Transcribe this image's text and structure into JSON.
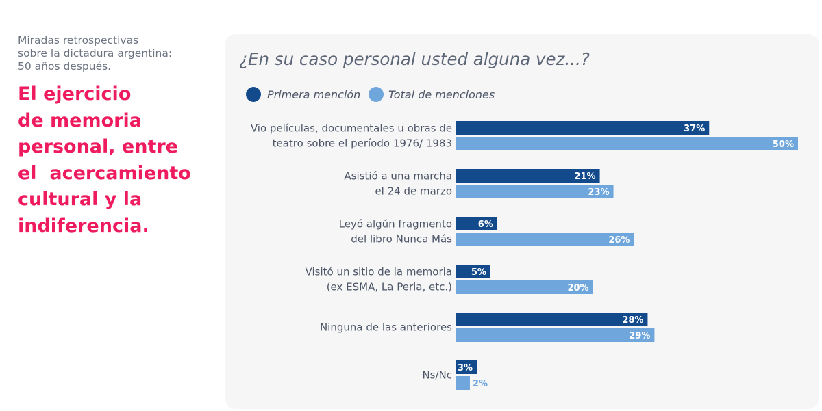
{
  "sidebar": {
    "kicker_lines": [
      "Miradas retrospectivas",
      "sobre la dictadura argentina:",
      "50 años después."
    ],
    "headline_lines": [
      "El ejercicio",
      "de memoria",
      "personal, entre",
      "el  acercamiento",
      "cultural y la",
      "indiferencia."
    ]
  },
  "colors": {
    "primera": "#124a8c",
    "total": "#6fa6dc",
    "headline": "#ee1b5e",
    "panel_bg": "#f6f6f7"
  },
  "chart_data": {
    "type": "bar",
    "orientation": "horizontal",
    "title": "¿En su caso personal usted alguna vez...?",
    "legend_position": "top-left",
    "grid": false,
    "categories": [
      [
        "Vio películas, documentales u obras de",
        "teatro sobre el período 1976/ 1983"
      ],
      [
        "Asistió a una marcha",
        "el 24 de marzo"
      ],
      [
        "Leyó algún fragmento",
        "del libro Nunca Más"
      ],
      [
        "Visitó un sitio de la memoria",
        "(ex ESMA, La Perla, etc.)"
      ],
      [
        "Ninguna de las anteriores"
      ],
      [
        "Ns/Nc"
      ]
    ],
    "series": [
      {
        "name": "Primera mención",
        "values": [
          37,
          21,
          6,
          5,
          28,
          3
        ]
      },
      {
        "name": "Total de menciones",
        "values": [
          50,
          23,
          26,
          20,
          29,
          2
        ]
      }
    ],
    "value_suffix": "%",
    "xlim": [
      0,
      50
    ]
  }
}
